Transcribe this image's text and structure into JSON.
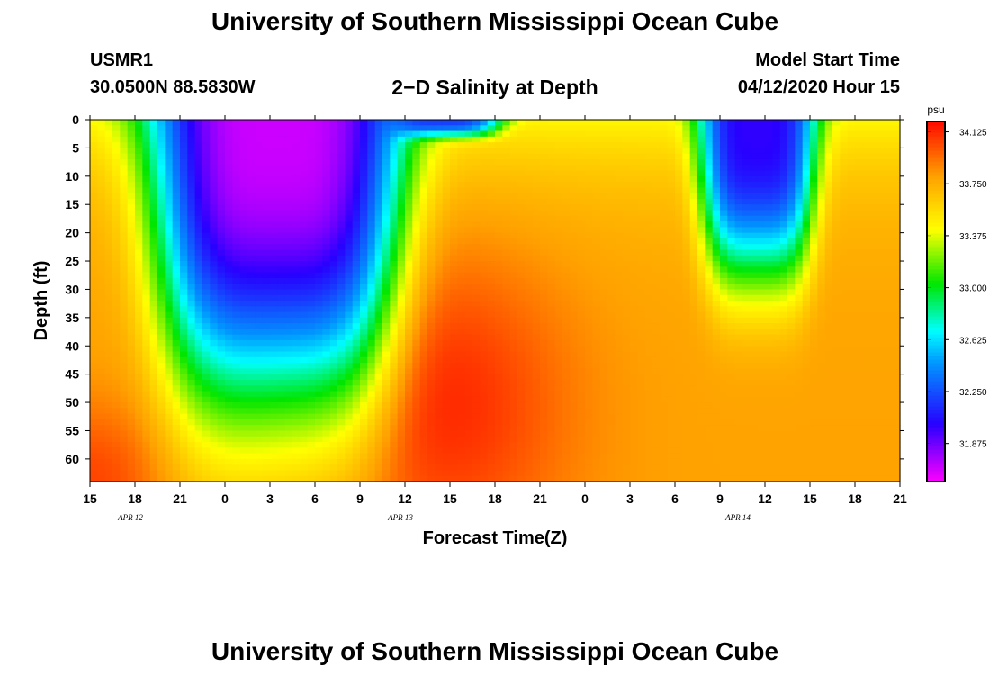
{
  "header": {
    "title": "University of Southern Mississippi Ocean Cube",
    "station": "USMR1",
    "coords": "30.0500N 88.5830W",
    "plot_title": "2−D Salinity at Depth",
    "start_label": "Model Start Time",
    "start_value": "04/12/2020 Hour 15"
  },
  "footer": {
    "title": "University of Southern Mississippi Ocean Cube"
  },
  "chart_data": {
    "type": "heatmap",
    "title": "2−D Salinity at Depth",
    "xlabel": "Forecast Time(Z)",
    "ylabel": "Depth (ft)",
    "x_tick_labels": [
      "15",
      "18",
      "21",
      "0",
      "3",
      "6",
      "9",
      "12",
      "15",
      "18",
      "21",
      "0",
      "3",
      "6",
      "9",
      "12",
      "15",
      "18",
      "21"
    ],
    "x_range_hours": [
      0,
      54
    ],
    "date_labels": [
      {
        "text": "APR  12",
        "at_tick": 1
      },
      {
        "text": "APR  13",
        "at_tick": 7
      },
      {
        "text": "APR  14",
        "at_tick": 14.5
      }
    ],
    "y_ticks": [
      0,
      5,
      10,
      15,
      20,
      25,
      30,
      35,
      40,
      45,
      50,
      55,
      60
    ],
    "ylim": [
      0,
      64
    ],
    "colorbar": {
      "unit": "psu",
      "min": 31.6,
      "max": 34.2,
      "tick_values": [
        34.125,
        33.75,
        33.375,
        33.0,
        32.625,
        32.25,
        31.875
      ],
      "tick_labels": [
        "34.125",
        "33.750",
        "33.375",
        "33.000",
        "32.625",
        "32.250",
        "31.875"
      ]
    },
    "fresh_features": [
      {
        "name": "fresh-plume-1",
        "center_hour": 12.5,
        "top_ft": 0,
        "bottom_ft": 50,
        "half_width_hours": 7.5,
        "core_salinity": 31.7
      },
      {
        "name": "surface-fresh-lens",
        "center_hour": 23.5,
        "top_ft": 0,
        "bottom_ft": 3,
        "half_width_hours": 3.5,
        "core_salinity": 32.2
      },
      {
        "name": "fresh-plume-2",
        "center_hour": 44.5,
        "top_ft": 0,
        "bottom_ft": 28,
        "half_width_hours": 3.5,
        "core_salinity": 32.0
      }
    ],
    "salty_core": {
      "center_hour": 24,
      "center_depth_ft": 50,
      "salinity": 34.12
    },
    "background_salinity": 33.8,
    "surface_salinity": 33.45
  }
}
